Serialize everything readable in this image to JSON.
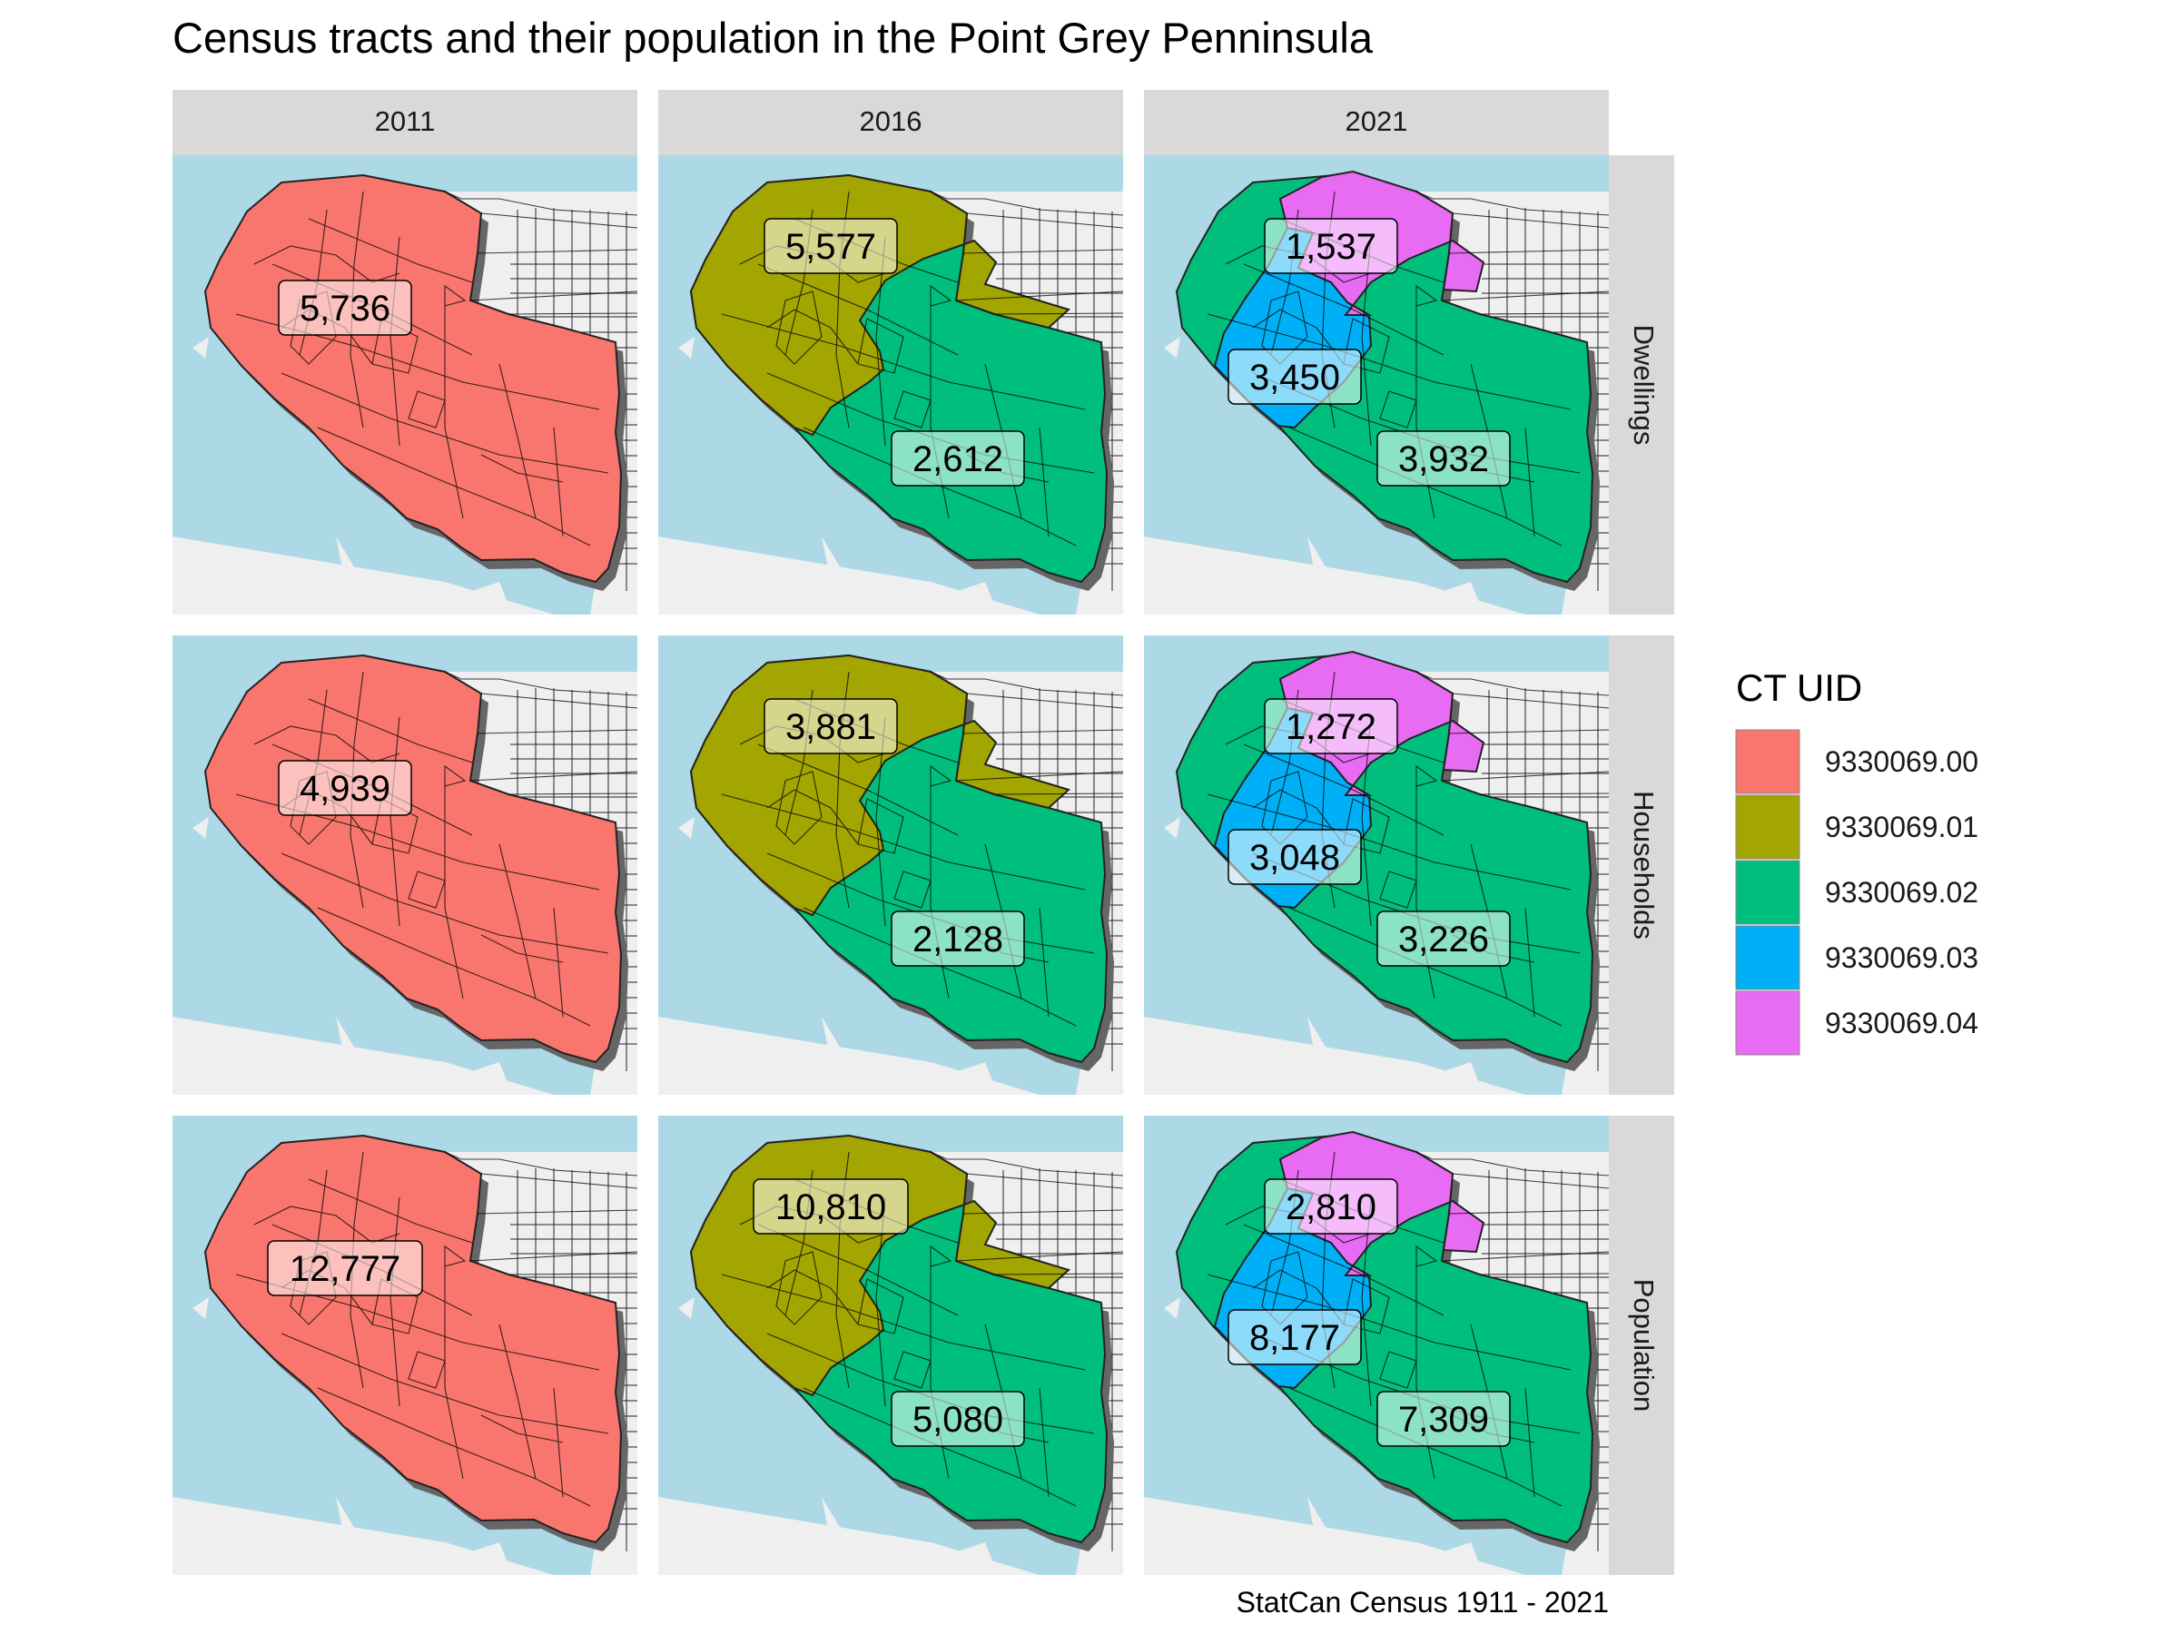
{
  "title": "Census tracts and their population in the Point Grey Penninsula",
  "caption": "StatCan Census 1911 - 2021",
  "colors": {
    "water": "#add8e6",
    "land": "#efefef",
    "strip": "#d9d9d9",
    "shadow": "#666666",
    "road": "#000000",
    "tract_outline": "#222222"
  },
  "legend": {
    "title": "CT UID",
    "items": [
      {
        "label": "9330069.00",
        "color": "#f8766d"
      },
      {
        "label": "9330069.01",
        "color": "#a3a500"
      },
      {
        "label": "9330069.02",
        "color": "#00bf7d"
      },
      {
        "label": "9330069.03",
        "color": "#00b0f6"
      },
      {
        "label": "9330069.04",
        "color": "#e76bf3"
      }
    ]
  },
  "columns": [
    "2011",
    "2016",
    "2021"
  ],
  "rows": [
    "Dwellings",
    "Households",
    "Population"
  ],
  "panels": [
    {
      "year": "2011",
      "variable": "Dwellings",
      "labels": [
        {
          "tract": "9330069.00",
          "value": "5,736"
        }
      ]
    },
    {
      "year": "2016",
      "variable": "Dwellings",
      "labels": [
        {
          "tract": "9330069.01",
          "value": "5,577"
        },
        {
          "tract": "9330069.02",
          "value": "2,612"
        }
      ]
    },
    {
      "year": "2021",
      "variable": "Dwellings",
      "labels": [
        {
          "tract": "9330069.04",
          "value": "1,537"
        },
        {
          "tract": "9330069.03",
          "value": "3,450"
        },
        {
          "tract": "9330069.02",
          "value": "3,932"
        }
      ]
    },
    {
      "year": "2011",
      "variable": "Households",
      "labels": [
        {
          "tract": "9330069.00",
          "value": "4,939"
        }
      ]
    },
    {
      "year": "2016",
      "variable": "Households",
      "labels": [
        {
          "tract": "9330069.01",
          "value": "3,881"
        },
        {
          "tract": "9330069.02",
          "value": "2,128"
        }
      ]
    },
    {
      "year": "2021",
      "variable": "Households",
      "labels": [
        {
          "tract": "9330069.04",
          "value": "1,272"
        },
        {
          "tract": "9330069.03",
          "value": "3,048"
        },
        {
          "tract": "9330069.02",
          "value": "3,226"
        }
      ]
    },
    {
      "year": "2011",
      "variable": "Population",
      "labels": [
        {
          "tract": "9330069.00",
          "value": "12,777"
        }
      ]
    },
    {
      "year": "2016",
      "variable": "Population",
      "labels": [
        {
          "tract": "9330069.01",
          "value": "10,810"
        },
        {
          "tract": "9330069.02",
          "value": "5,080"
        }
      ]
    },
    {
      "year": "2021",
      "variable": "Population",
      "labels": [
        {
          "tract": "9330069.04",
          "value": "2,810"
        },
        {
          "tract": "9330069.03",
          "value": "8,177"
        },
        {
          "tract": "9330069.02",
          "value": "7,309"
        }
      ]
    }
  ]
}
